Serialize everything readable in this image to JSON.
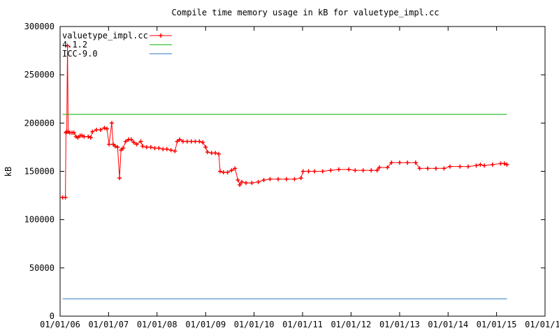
{
  "chart_data": {
    "type": "line",
    "title": "Compile time memory usage in kB for valuetype_impl.cc",
    "xlabel": "",
    "ylabel": "kB",
    "xlim": [
      "2006-01-01",
      "2016-01-01"
    ],
    "ylim": [
      0,
      300000
    ],
    "y_ticks": [
      0,
      50000,
      100000,
      150000,
      200000,
      250000,
      300000
    ],
    "x_ticks": [
      "2006-01-01",
      "2007-01-01",
      "2008-01-01",
      "2009-01-01",
      "2010-01-01",
      "2011-01-01",
      "2012-01-01",
      "2013-01-01",
      "2014-01-01",
      "2015-01-01",
      "2016-01-01"
    ],
    "x_tick_labels": [
      "01/01/06",
      "01/01/07",
      "01/01/08",
      "01/01/09",
      "01/01/10",
      "01/01/11",
      "01/01/12",
      "01/01/13",
      "01/01/14",
      "01/01/15",
      "01/01/16"
    ],
    "legend_position": "top-left",
    "grid": false,
    "series": [
      {
        "name": "valuetype_impl.cc",
        "color": "#ff0000",
        "style": "line-points",
        "points": [
          [
            "2006-01-20",
            123000
          ],
          [
            "2006-02-10",
            123000
          ],
          [
            "2006-02-14",
            190000
          ],
          [
            "2006-02-20",
            191000
          ],
          [
            "2006-02-26",
            280000
          ],
          [
            "2006-03-03",
            191000
          ],
          [
            "2006-03-15",
            190000
          ],
          [
            "2006-04-01",
            190000
          ],
          [
            "2006-04-15",
            190000
          ],
          [
            "2006-05-01",
            186000
          ],
          [
            "2006-05-15",
            185000
          ],
          [
            "2006-06-01",
            187000
          ],
          [
            "2006-06-15",
            187000
          ],
          [
            "2006-07-01",
            186000
          ],
          [
            "2006-08-01",
            186000
          ],
          [
            "2006-08-20",
            185000
          ],
          [
            "2006-09-01",
            191000
          ],
          [
            "2006-10-01",
            193000
          ],
          [
            "2006-11-01",
            193000
          ],
          [
            "2006-12-01",
            195000
          ],
          [
            "2006-12-20",
            194000
          ],
          [
            "2007-01-05",
            178000
          ],
          [
            "2007-01-25",
            200000
          ],
          [
            "2007-02-05",
            178000
          ],
          [
            "2007-02-20",
            176000
          ],
          [
            "2007-03-10",
            175000
          ],
          [
            "2007-03-25",
            143000
          ],
          [
            "2007-04-05",
            172000
          ],
          [
            "2007-04-20",
            174000
          ],
          [
            "2007-05-10",
            181000
          ],
          [
            "2007-06-01",
            183000
          ],
          [
            "2007-06-20",
            183000
          ],
          [
            "2007-07-10",
            180000
          ],
          [
            "2007-08-01",
            178000
          ],
          [
            "2007-09-01",
            181000
          ],
          [
            "2007-09-15",
            176000
          ],
          [
            "2007-10-15",
            175000
          ],
          [
            "2007-11-15",
            175000
          ],
          [
            "2007-12-15",
            174000
          ],
          [
            "2008-01-15",
            174000
          ],
          [
            "2008-02-15",
            173000
          ],
          [
            "2008-03-15",
            173000
          ],
          [
            "2008-04-15",
            172000
          ],
          [
            "2008-05-15",
            171000
          ],
          [
            "2008-06-01",
            181000
          ],
          [
            "2008-06-20",
            183000
          ],
          [
            "2008-07-15",
            181000
          ],
          [
            "2008-08-15",
            181000
          ],
          [
            "2008-09-15",
            181000
          ],
          [
            "2008-10-15",
            181000
          ],
          [
            "2008-11-15",
            181000
          ],
          [
            "2008-12-10",
            180000
          ],
          [
            "2009-01-01",
            175000
          ],
          [
            "2009-01-15",
            170000
          ],
          [
            "2009-02-15",
            169000
          ],
          [
            "2009-03-15",
            169000
          ],
          [
            "2009-04-10",
            168000
          ],
          [
            "2009-04-20",
            150000
          ],
          [
            "2009-05-15",
            149000
          ],
          [
            "2009-06-15",
            149000
          ],
          [
            "2009-07-15",
            151000
          ],
          [
            "2009-08-10",
            153000
          ],
          [
            "2009-09-01",
            141000
          ],
          [
            "2009-09-15",
            136000
          ],
          [
            "2009-10-01",
            139000
          ],
          [
            "2009-11-01",
            138000
          ],
          [
            "2009-12-15",
            138000
          ],
          [
            "2010-02-01",
            139000
          ],
          [
            "2010-03-15",
            141000
          ],
          [
            "2010-05-01",
            142000
          ],
          [
            "2010-07-01",
            142000
          ],
          [
            "2010-09-01",
            142000
          ],
          [
            "2010-11-01",
            142000
          ],
          [
            "2010-12-20",
            143000
          ],
          [
            "2011-01-05",
            150000
          ],
          [
            "2011-02-15",
            150000
          ],
          [
            "2011-04-01",
            150000
          ],
          [
            "2011-06-01",
            150000
          ],
          [
            "2011-08-01",
            151000
          ],
          [
            "2011-10-01",
            152000
          ],
          [
            "2011-12-15",
            152000
          ],
          [
            "2012-02-01",
            151000
          ],
          [
            "2012-04-01",
            151000
          ],
          [
            "2012-06-01",
            151000
          ],
          [
            "2012-07-15",
            151000
          ],
          [
            "2012-08-01",
            154000
          ],
          [
            "2012-10-01",
            154000
          ],
          [
            "2012-11-01",
            159000
          ],
          [
            "2013-01-01",
            159000
          ],
          [
            "2013-03-01",
            159000
          ],
          [
            "2013-05-01",
            159000
          ],
          [
            "2013-06-01",
            153000
          ],
          [
            "2013-08-01",
            153000
          ],
          [
            "2013-10-01",
            153000
          ],
          [
            "2013-12-01",
            153000
          ],
          [
            "2014-01-15",
            155000
          ],
          [
            "2014-04-01",
            155000
          ],
          [
            "2014-06-01",
            155000
          ],
          [
            "2014-08-01",
            156000
          ],
          [
            "2014-09-01",
            157000
          ],
          [
            "2014-10-01",
            156000
          ],
          [
            "2014-12-01",
            157000
          ],
          [
            "2015-02-01",
            158000
          ],
          [
            "2015-03-01",
            158000
          ],
          [
            "2015-03-20",
            157000
          ]
        ]
      },
      {
        "name": "4.1.2",
        "color": "#00b000",
        "style": "line",
        "points": [
          [
            "2006-01-20",
            209000
          ],
          [
            "2015-03-20",
            209000
          ]
        ]
      },
      {
        "name": "ICC-9.0",
        "color": "#2a78c8",
        "style": "line",
        "points": [
          [
            "2006-01-20",
            18000
          ],
          [
            "2015-03-20",
            18000
          ]
        ]
      }
    ]
  }
}
